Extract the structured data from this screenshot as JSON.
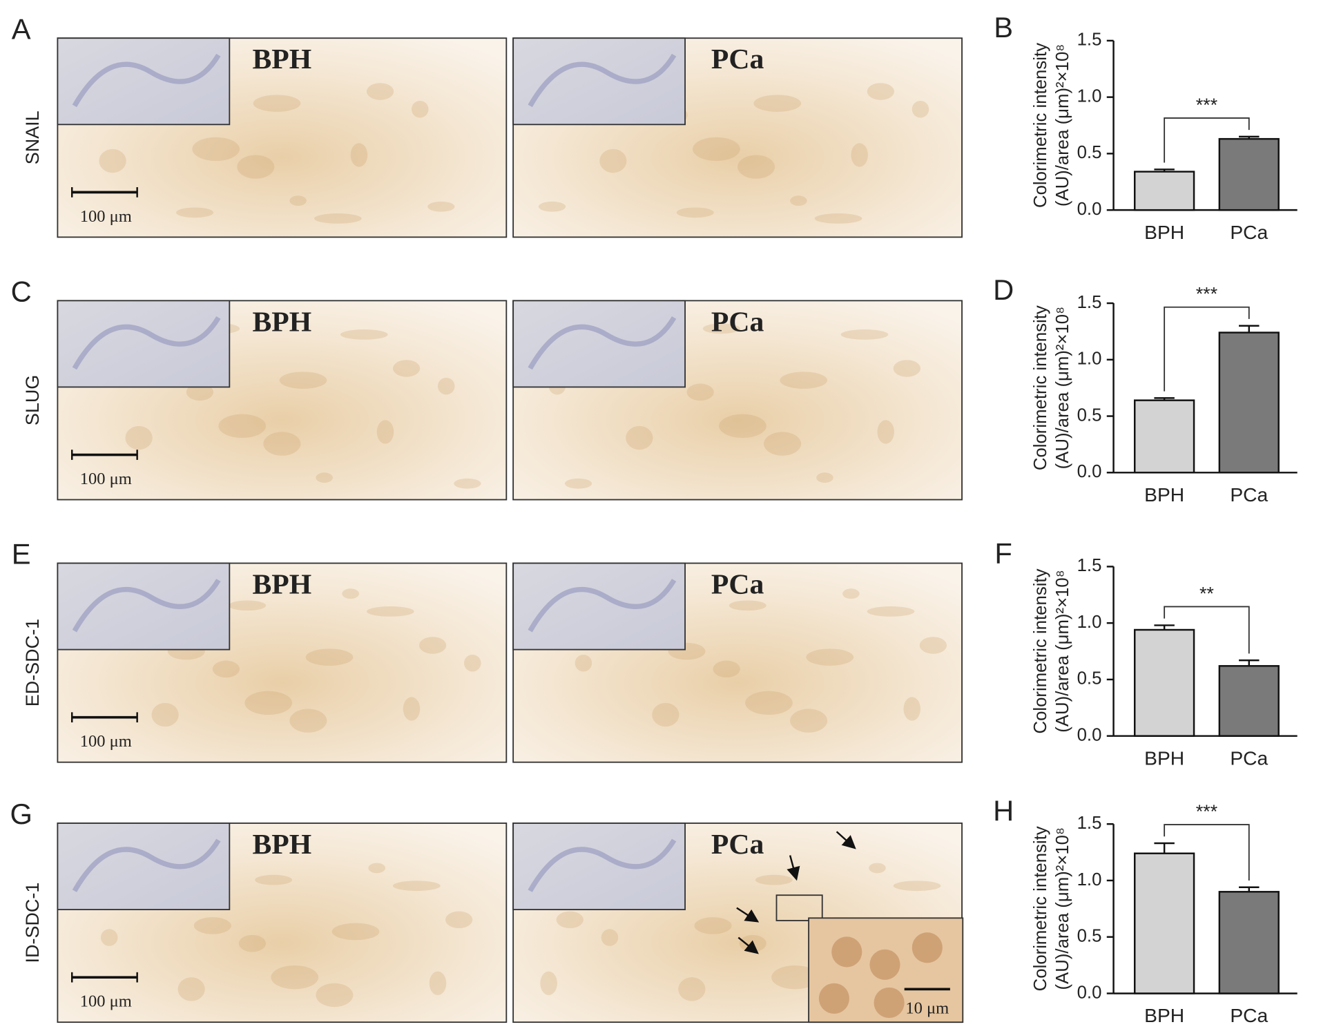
{
  "chart_data": [
    {
      "type": "bar",
      "panel": "B",
      "ylabel": [
        "Colorimetric intensity",
        "(AU)/area (μm)²×10⁸"
      ],
      "categories": [
        "BPH",
        "PCa"
      ],
      "values": [
        0.34,
        0.63
      ],
      "errors": [
        0.02,
        0.02
      ],
      "colors": [
        "#d3d3d3",
        "#7a7a7a"
      ],
      "significance": "***",
      "ylim": [
        0,
        1.5
      ],
      "yticks": [
        {
          "value": 0,
          "label": "0.0"
        },
        0.5,
        {
          "value": 1,
          "label": "1.0"
        },
        1.5
      ]
    },
    {
      "type": "bar",
      "panel": "D",
      "ylabel": [
        "Colorimetric intensity",
        "(AU)/area (μm)²×10⁸"
      ],
      "categories": [
        "BPH",
        "PCa"
      ],
      "values": [
        0.64,
        1.24
      ],
      "errors": [
        0.02,
        0.06
      ],
      "colors": [
        "#d3d3d3",
        "#7a7a7a"
      ],
      "significance": "***",
      "ylim": [
        0,
        1.5
      ],
      "yticks": [
        {
          "value": 0,
          "label": "0.0"
        },
        0.5,
        {
          "value": 1,
          "label": "1.0"
        },
        1.5
      ]
    },
    {
      "type": "bar",
      "panel": "F",
      "ylabel": [
        "Colorimetric intensity",
        "(AU)/area (μm)²×10⁸"
      ],
      "categories": [
        "BPH",
        "PCa"
      ],
      "values": [
        0.94,
        0.62
      ],
      "errors": [
        0.04,
        0.05
      ],
      "colors": [
        "#d3d3d3",
        "#7a7a7a"
      ],
      "significance": "**",
      "ylim": [
        0,
        1.5
      ],
      "yticks": [
        {
          "value": 0,
          "label": "0.0"
        },
        0.5,
        {
          "value": 1,
          "label": "1.0"
        },
        1.5
      ]
    },
    {
      "type": "bar",
      "panel": "H",
      "ylabel": [
        "Colorimetric intensity",
        "(AU)/area (μm)²×10⁸"
      ],
      "categories": [
        "BPH",
        "PCa"
      ],
      "values": [
        1.24,
        0.9
      ],
      "errors": [
        0.09,
        0.04
      ],
      "colors": [
        "#d3d3d3",
        "#7a7a7a"
      ],
      "significance": "***",
      "ylim": [
        0,
        1.5
      ],
      "yticks": [
        {
          "value": 0,
          "label": "0.0"
        },
        0.5,
        {
          "value": 1,
          "label": "1.0"
        },
        1.5
      ]
    }
  ],
  "micrographs": {
    "rows": [
      {
        "panel": "A",
        "label": "SNAIL",
        "images": [
          "BPH",
          "PCa"
        ],
        "scale_bar": "100 μm"
      },
      {
        "panel": "C",
        "label": "SLUG",
        "images": [
          "BPH",
          "PCa"
        ],
        "scale_bar": "100 μm"
      },
      {
        "panel": "E",
        "label": "ED-SDC-1",
        "images": [
          "BPH",
          "PCa"
        ],
        "scale_bar": "100 μm"
      },
      {
        "panel": "G",
        "label": "ID-SDC-1",
        "images": [
          "BPH",
          "PCa"
        ],
        "scale_bar": "100 μm",
        "zoom_scale_bar": "10 μm"
      }
    ]
  }
}
